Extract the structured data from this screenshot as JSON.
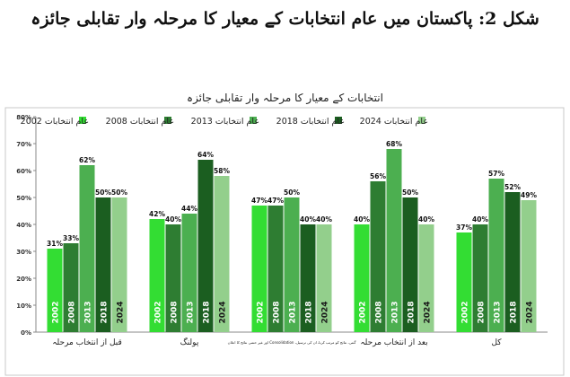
{
  "page": {
    "title": "شکل 2: پاکستان میں عام انتخابات کے معیار کا مرحلہ وار تقابلی جائزہ"
  },
  "colors": {
    "2002": "#33dd33",
    "2008": "#2e7d32",
    "2013": "#4caf50",
    "2018": "#1b5e20",
    "2024": "#93cf8c"
  },
  "chart_data": {
    "type": "bar",
    "title": "انتخابات کے معیار کا مرحلہ وار تقابلی جائزہ",
    "categories": [
      "قبل از انتخاب مرحلہ",
      "پولنگ",
      "گنتی، نتائج کو مرتب کرنا، ان کی ترسیل، Consolidation اور غیر حتمی نتائج کا اعلان",
      "بعد از انتخاب مرحلہ",
      "کل"
    ],
    "series": [
      {
        "name": "عام انتخابات 2002",
        "label": "2002",
        "values": [
          31,
          42,
          47,
          40,
          37
        ]
      },
      {
        "name": "عام انتخابات 2008",
        "label": "2008",
        "values": [
          33,
          40,
          47,
          56,
          40
        ]
      },
      {
        "name": "عام انتخابات 2013",
        "label": "2013",
        "values": [
          62,
          44,
          50,
          68,
          57
        ]
      },
      {
        "name": "عام انتخابات 2018",
        "label": "2018",
        "values": [
          50,
          64,
          40,
          50,
          52
        ]
      },
      {
        "name": "عام انتخابات 2024",
        "label": "2024",
        "values": [
          50,
          58,
          40,
          40,
          49
        ]
      }
    ],
    "ylim": [
      0,
      80
    ],
    "yticks": [
      "0%",
      "10%",
      "20%",
      "30%",
      "40%",
      "50%",
      "60%",
      "70%",
      "80%"
    ],
    "grid": false,
    "legend_position": "top"
  }
}
